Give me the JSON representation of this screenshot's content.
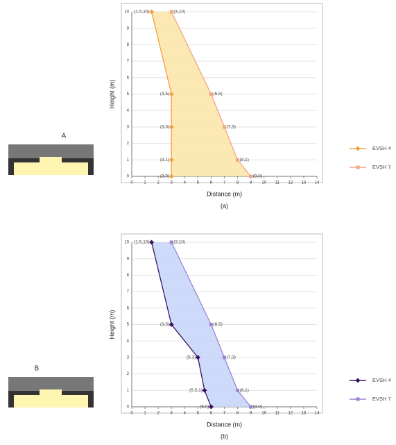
{
  "thumbnails": [
    "A",
    "B"
  ],
  "chart_data": [
    {
      "type": "line",
      "caption": "(a)",
      "x_label": "Distance (m)",
      "y_label": "Height (m)",
      "xlim": [
        0,
        14
      ],
      "xticks": [
        0,
        1,
        2,
        3,
        4,
        5,
        6,
        7,
        8,
        9,
        10,
        11,
        12,
        13,
        14
      ],
      "ylim": [
        0,
        10
      ],
      "yticks": [
        0,
        1,
        2,
        3,
        4,
        5,
        6,
        7,
        8,
        9,
        10
      ],
      "grid": true,
      "fill_between": "#fbe4a6",
      "series": [
        {
          "name": "EVSH 4",
          "color": "#f5a040",
          "marker": "diamond",
          "x": [
            1.5,
            3,
            3,
            3,
            3
          ],
          "values": [
            10,
            5,
            3,
            1,
            0
          ],
          "value_labels": [
            "(1.5,10)",
            "(3,5)",
            "(3,3)",
            "(3,1)",
            "(3,0)"
          ]
        },
        {
          "name": "EVSH 7",
          "color": "#f2a684",
          "marker": "square",
          "x": [
            3,
            6,
            7,
            8,
            9
          ],
          "values": [
            10,
            5,
            3,
            1,
            0
          ],
          "value_labels": [
            "(3,10)",
            "(6,5)",
            "(7,3)",
            "(8,1)",
            "(9,0)"
          ]
        }
      ]
    },
    {
      "type": "line",
      "caption": "(b)",
      "x_label": "Distance (m)",
      "y_label": "Height (m)",
      "xlim": [
        0,
        14
      ],
      "xticks": [
        0,
        1,
        2,
        3,
        4,
        5,
        6,
        7,
        8,
        9,
        10,
        11,
        12,
        13,
        14
      ],
      "ylim": [
        0,
        10
      ],
      "yticks": [
        0,
        1,
        2,
        3,
        4,
        5,
        6,
        7,
        8,
        9,
        10
      ],
      "grid": true,
      "fill_between": "#c4d3f8",
      "series": [
        {
          "name": "EVSH 4",
          "color": "#3a1262",
          "marker": "diamond",
          "x": [
            1.5,
            3,
            5,
            5.5,
            6
          ],
          "values": [
            10,
            5,
            3,
            1,
            0
          ],
          "value_labels": [
            "(1.5,10)",
            "(3,5)",
            "(5,3)",
            "(5.5,1)",
            "(6,0)"
          ]
        },
        {
          "name": "EVSH 7",
          "color": "#9c84d2",
          "marker": "square",
          "x": [
            3,
            6,
            7,
            8,
            9
          ],
          "values": [
            10,
            5,
            3,
            1,
            0
          ],
          "value_labels": [
            "(3,10)",
            "(6,5)",
            "(7,3)",
            "(8,1)",
            "(9,0)"
          ]
        }
      ]
    }
  ]
}
